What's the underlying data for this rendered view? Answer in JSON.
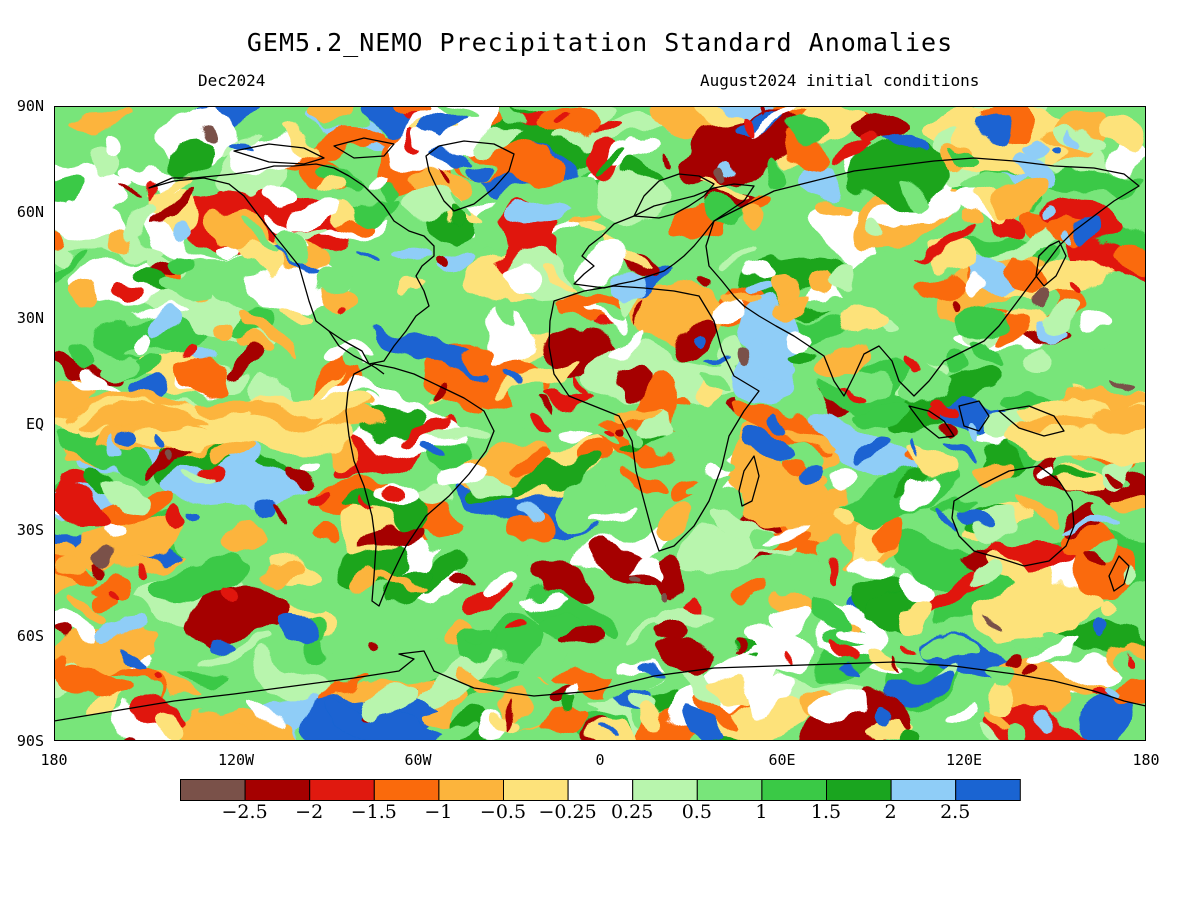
{
  "title": "GEM5.2_NEMO Precipitation Standard Anomalies",
  "subtitle_left": "Dec2024",
  "subtitle_right": "August2024 initial conditions",
  "map": {
    "type": "global precipitation standard anomaly map",
    "projection": "equirectangular",
    "lat_range": [
      -90,
      90
    ],
    "lon_range": [
      -180,
      180
    ],
    "lat_ticks": [
      "90N",
      "60N",
      "30N",
      "EQ",
      "30S",
      "60S",
      "90S"
    ],
    "lon_ticks": [
      "180",
      "120W",
      "60W",
      "0",
      "60E",
      "120E",
      "180"
    ],
    "coastlines": true
  },
  "colorbar": {
    "colors": [
      "#7a5149",
      "#a50000",
      "#e0190f",
      "#fa6a0c",
      "#fcb43c",
      "#fde27a",
      "#ffffff",
      "#b8f5ad",
      "#78e57a",
      "#3ac946",
      "#1aa51f",
      "#8fcdf7",
      "#1a64d2"
    ],
    "labels": [
      "−2.5",
      "−2",
      "−1.5",
      "−1",
      "−0.5",
      "−0.25",
      "0.25",
      "0.5",
      "1",
      "1.5",
      "2",
      "2.5"
    ]
  }
}
